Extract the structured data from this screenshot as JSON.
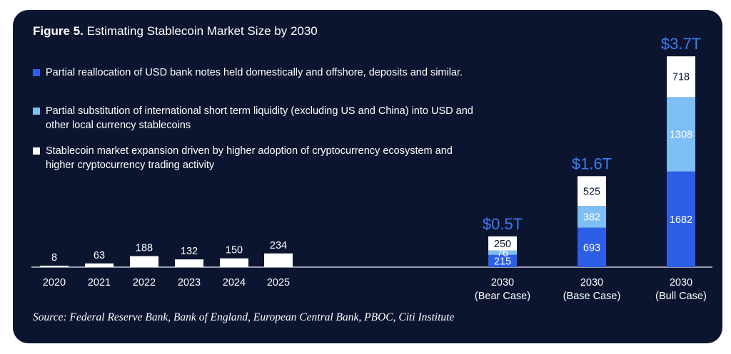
{
  "figure": {
    "label": "Figure 5.",
    "title": "Estimating Stablecoin Market Size by 2030"
  },
  "colors": {
    "background": "#0c1530",
    "domestic": "#2d5ee6",
    "international": "#7dbef5",
    "expansion": "#ffffff",
    "total_label": "#3f7cf0",
    "axis": "#c8cbd6",
    "text": "#ffffff"
  },
  "legend": [
    {
      "key": "domestic",
      "text": "Partial reallocation of USD bank notes held domestically and offshore, deposits and similar."
    },
    {
      "key": "international",
      "text": "Partial substitution of international short term liquidity (excluding US and China) into USD and other local currency stablecoins"
    },
    {
      "key": "expansion",
      "text": "Stablecoin market expansion driven by higher adoption of cryptocurrency ecosystem and higher cryptocurrency trading activity"
    }
  ],
  "source": "Source: Federal Reserve Bank, Bank of England, European Central Bank, PBOC, Citi Institute",
  "chart_data": {
    "type": "bar",
    "title": "Estimating Stablecoin Market Size by 2030",
    "xlabel": "",
    "ylabel": "",
    "ylim": [
      0,
      3800
    ],
    "grid": false,
    "legend_position": "top-left",
    "historical": {
      "categories": [
        "2020",
        "2021",
        "2022",
        "2023",
        "2024",
        "2025"
      ],
      "values": [
        8,
        63,
        188,
        132,
        150,
        234
      ]
    },
    "projection": {
      "categories": [
        "2030\n(Bear Case)",
        "2030\n(Base Case)",
        "2030\n(Bull Case)"
      ],
      "series": [
        {
          "key": "domestic",
          "values": [
            215,
            693,
            1682
          ]
        },
        {
          "key": "international",
          "values": [
            76,
            382,
            1308
          ]
        },
        {
          "key": "expansion",
          "values": [
            250,
            525,
            718
          ]
        }
      ],
      "totals": [
        "$0.5T",
        "$1.6T",
        "$3.7T"
      ]
    }
  }
}
